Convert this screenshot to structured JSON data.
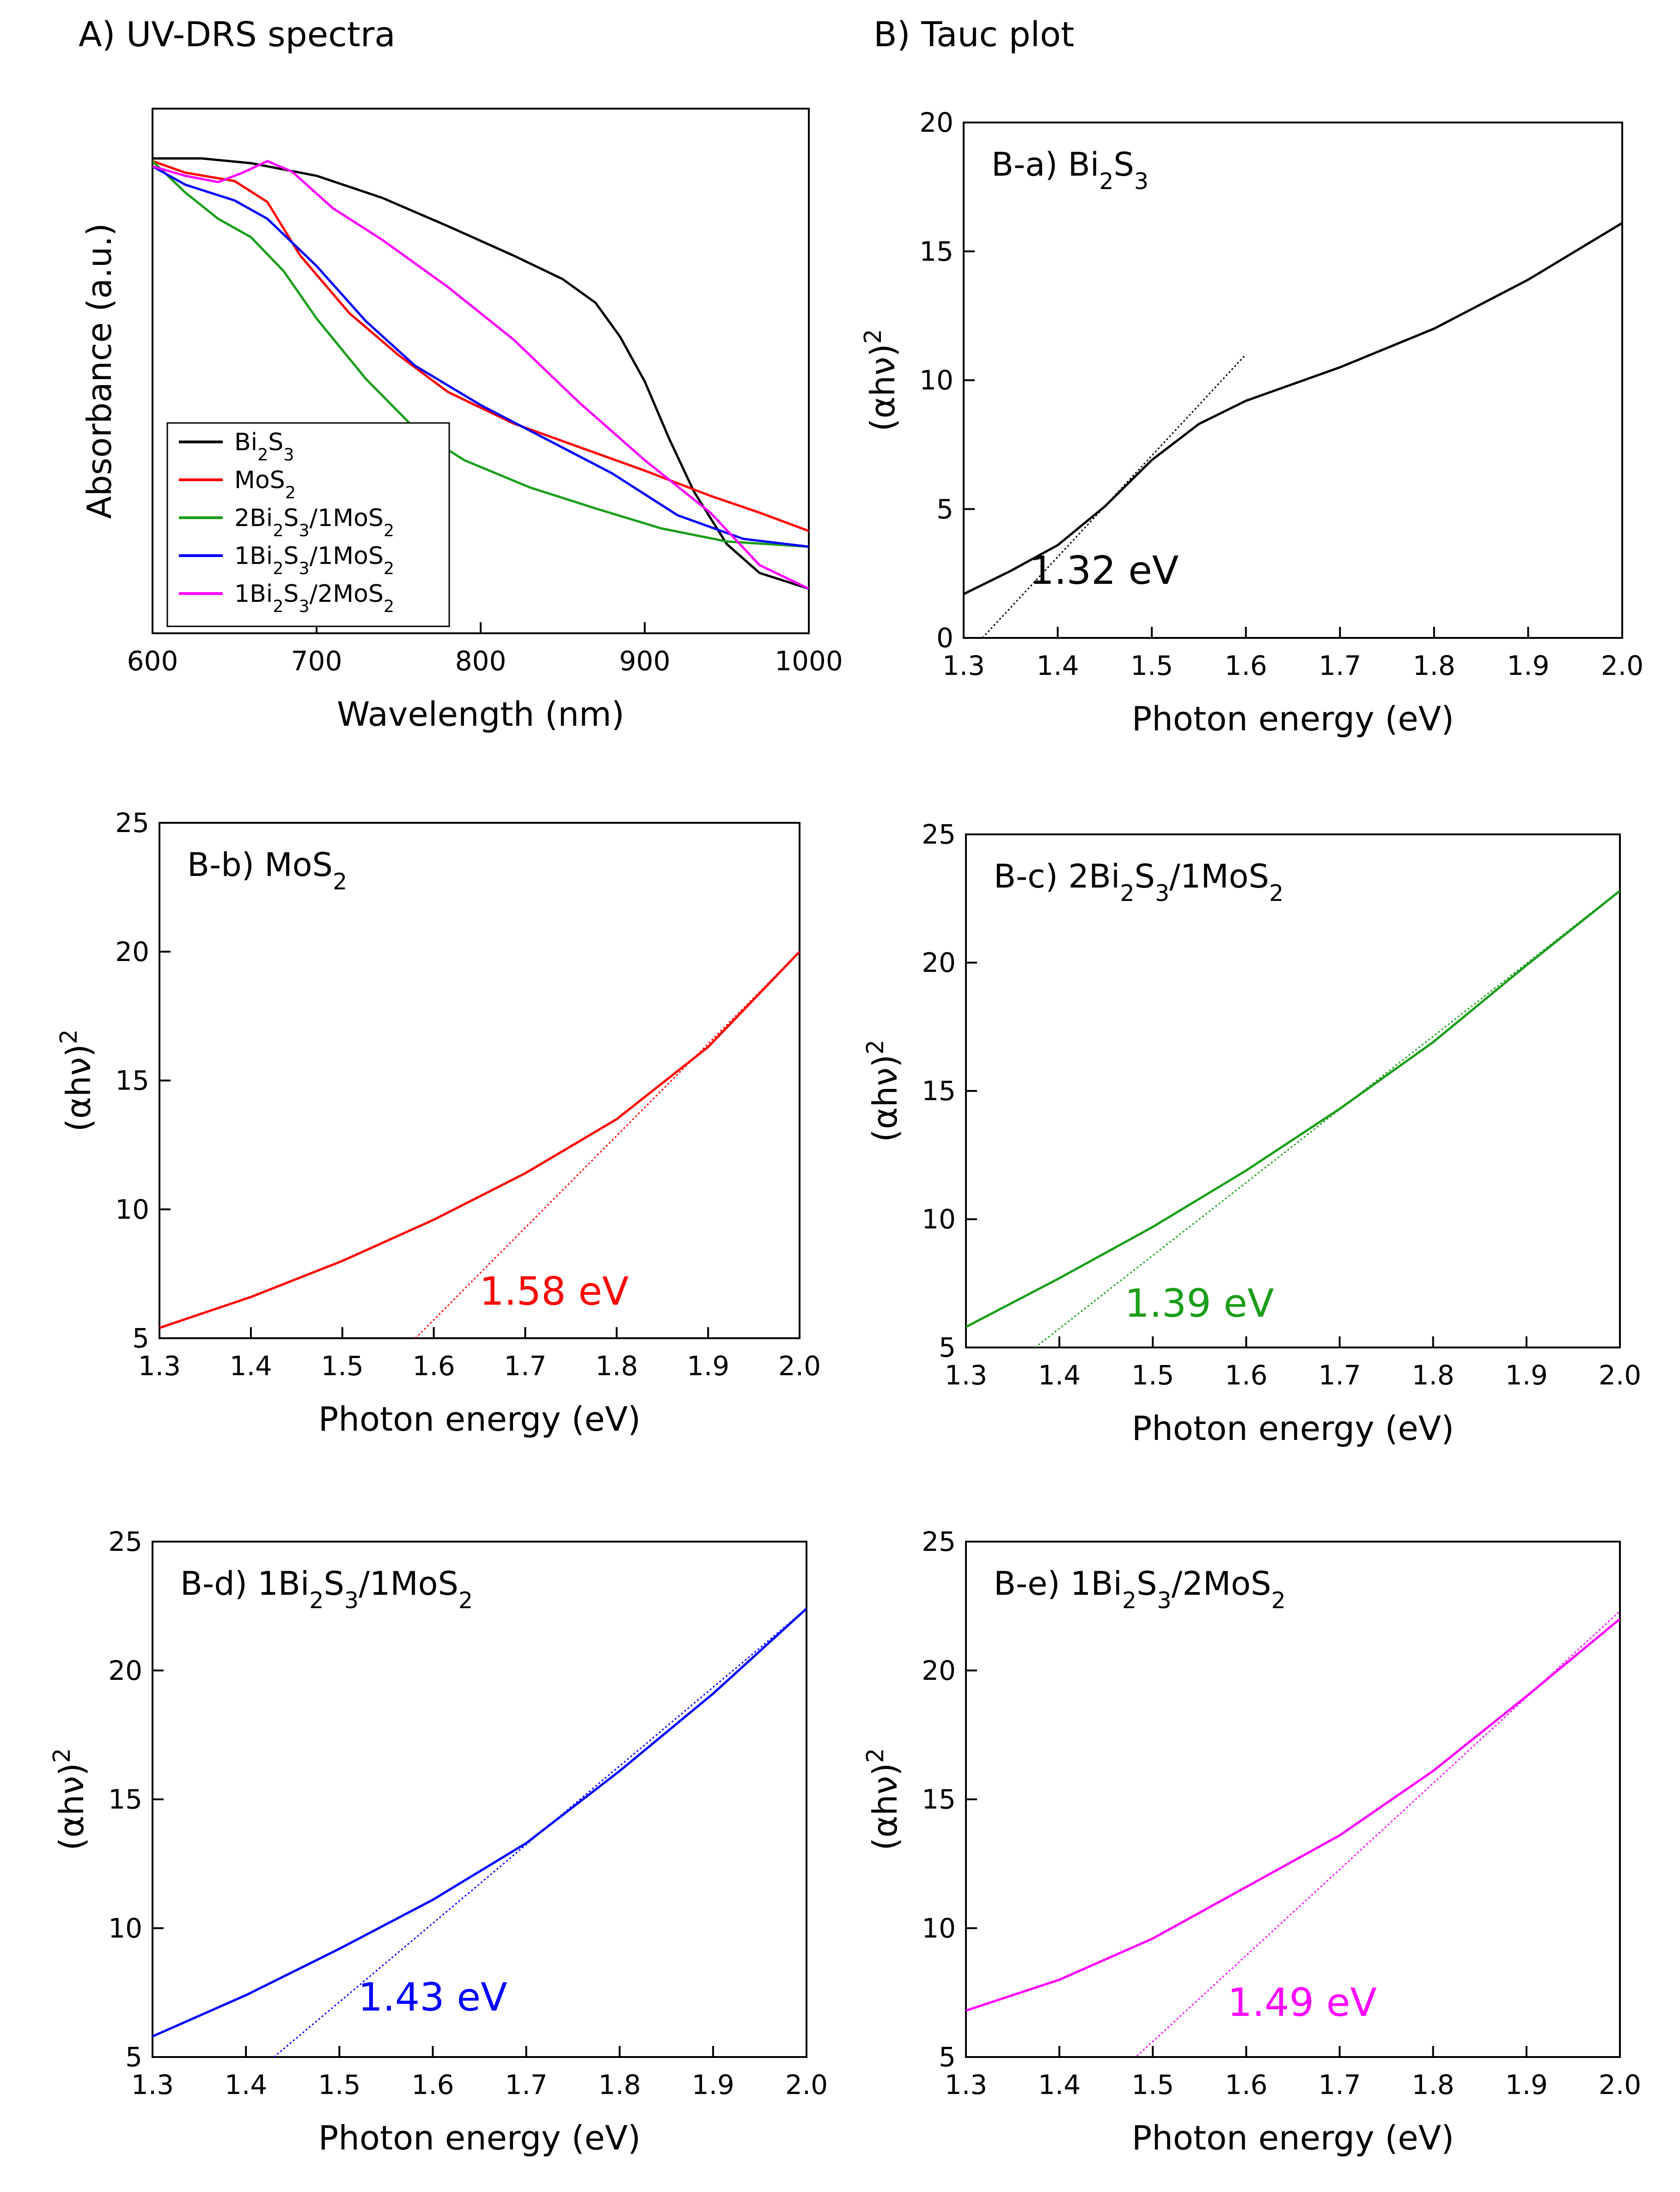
{
  "sections": {
    "a_title": "A) UV-DRS spectra",
    "b_title": "B) Tauc plot"
  },
  "chart_data": [
    {
      "id": "uvdrs",
      "type": "line",
      "title": "",
      "xlabel": "Wavelength (nm)",
      "ylabel": "Absorbance (a.u.)",
      "xlim": [
        600,
        1000
      ],
      "ylim": [
        0,
        1
      ],
      "xticks": [
        600,
        700,
        800,
        900,
        1000
      ],
      "yticks": [],
      "legend_position": "bottom-left",
      "series": [
        {
          "name": "Bi₂S₃",
          "color": "#000000",
          "points": [
            [
              600,
              0.905
            ],
            [
              630,
              0.905
            ],
            [
              660,
              0.896
            ],
            [
              700,
              0.872
            ],
            [
              740,
              0.83
            ],
            [
              780,
              0.776
            ],
            [
              820,
              0.72
            ],
            [
              850,
              0.675
            ],
            [
              870,
              0.63
            ],
            [
              885,
              0.565
            ],
            [
              900,
              0.48
            ],
            [
              915,
              0.37
            ],
            [
              930,
              0.27
            ],
            [
              950,
              0.17
            ],
            [
              970,
              0.115
            ],
            [
              1000,
              0.085
            ]
          ]
        },
        {
          "name": "MoS₂",
          "color": "#ff0000",
          "points": [
            [
              600,
              0.9
            ],
            [
              620,
              0.878
            ],
            [
              650,
              0.862
            ],
            [
              670,
              0.822
            ],
            [
              690,
              0.72
            ],
            [
              720,
              0.61
            ],
            [
              750,
              0.53
            ],
            [
              780,
              0.46
            ],
            [
              820,
              0.4
            ],
            [
              860,
              0.355
            ],
            [
              900,
              0.31
            ],
            [
              940,
              0.262
            ],
            [
              970,
              0.23
            ],
            [
              1000,
              0.195
            ]
          ]
        },
        {
          "name": "2Bi₂S₃/1MoS₂",
          "color": "#1a9e1a",
          "points": [
            [
              600,
              0.9
            ],
            [
              620,
              0.84
            ],
            [
              640,
              0.79
            ],
            [
              660,
              0.755
            ],
            [
              680,
              0.69
            ],
            [
              700,
              0.6
            ],
            [
              730,
              0.485
            ],
            [
              760,
              0.39
            ],
            [
              790,
              0.33
            ],
            [
              830,
              0.278
            ],
            [
              870,
              0.238
            ],
            [
              910,
              0.2
            ],
            [
              950,
              0.175
            ],
            [
              1000,
              0.165
            ]
          ]
        },
        {
          "name": "1Bi₂S₃/1MoS₂",
          "color": "#0000ff",
          "points": [
            [
              600,
              0.89
            ],
            [
              620,
              0.855
            ],
            [
              650,
              0.825
            ],
            [
              670,
              0.79
            ],
            [
              700,
              0.7
            ],
            [
              730,
              0.595
            ],
            [
              760,
              0.51
            ],
            [
              800,
              0.435
            ],
            [
              840,
              0.37
            ],
            [
              880,
              0.305
            ],
            [
              920,
              0.225
            ],
            [
              960,
              0.18
            ],
            [
              1000,
              0.165
            ]
          ]
        },
        {
          "name": "1Bi₂S₃/2MoS₂",
          "color": "#ff00ff",
          "points": [
            [
              600,
              0.89
            ],
            [
              620,
              0.872
            ],
            [
              640,
              0.86
            ],
            [
              655,
              0.878
            ],
            [
              670,
              0.9
            ],
            [
              685,
              0.88
            ],
            [
              710,
              0.81
            ],
            [
              740,
              0.75
            ],
            [
              780,
              0.66
            ],
            [
              820,
              0.56
            ],
            [
              860,
              0.44
            ],
            [
              900,
              0.33
            ],
            [
              940,
              0.23
            ],
            [
              970,
              0.13
            ],
            [
              1000,
              0.085
            ]
          ]
        }
      ]
    },
    {
      "id": "taucA",
      "type": "line",
      "title": "B-a) Bi₂S₃",
      "xlabel": "Photon energy (eV)",
      "ylabel": "(αhν)²",
      "xlim": [
        1.3,
        2.0
      ],
      "ylim": [
        0,
        20
      ],
      "xticks": [
        1.3,
        1.4,
        1.5,
        1.6,
        1.7,
        1.8,
        1.9,
        2.0
      ],
      "yticks": [
        0,
        5,
        10,
        15,
        20
      ],
      "color": "#000000",
      "curve": [
        [
          1.3,
          1.7
        ],
        [
          1.35,
          2.6
        ],
        [
          1.4,
          3.6
        ],
        [
          1.45,
          5.1
        ],
        [
          1.5,
          6.9
        ],
        [
          1.55,
          8.3
        ],
        [
          1.6,
          9.2
        ],
        [
          1.7,
          10.5
        ],
        [
          1.8,
          12
        ],
        [
          1.9,
          13.9
        ],
        [
          2.0,
          16.1
        ]
      ],
      "tangent": [
        [
          1.32,
          0
        ],
        [
          1.6,
          11
        ]
      ],
      "annotation": "1.32 eV",
      "annotation_at": [
        1.37,
        2.1
      ]
    },
    {
      "id": "taucB",
      "type": "line",
      "title": "B-b) MoS₂",
      "xlabel": "Photon energy (eV)",
      "ylabel": "(αhν)²",
      "xlim": [
        1.3,
        2.0
      ],
      "ylim": [
        5,
        25
      ],
      "xticks": [
        1.3,
        1.4,
        1.5,
        1.6,
        1.7,
        1.8,
        1.9,
        2.0
      ],
      "yticks": [
        5,
        10,
        15,
        20,
        25
      ],
      "color": "#ff0000",
      "curve": [
        [
          1.3,
          5.4
        ],
        [
          1.4,
          6.6
        ],
        [
          1.5,
          8
        ],
        [
          1.6,
          9.6
        ],
        [
          1.7,
          11.4
        ],
        [
          1.8,
          13.5
        ],
        [
          1.9,
          16.3
        ],
        [
          2.0,
          20
        ]
      ],
      "tangent": [
        [
          1.58,
          5
        ],
        [
          2.0,
          20
        ]
      ],
      "annotation": "1.58 eV",
      "annotation_at": [
        1.65,
        6.3
      ]
    },
    {
      "id": "taucC",
      "type": "line",
      "title": "B-c) 2Bi₂S₃/1MoS₂",
      "xlabel": "Photon energy (eV)",
      "ylabel": "(αhν)²",
      "xlim": [
        1.3,
        2.0
      ],
      "ylim": [
        5,
        25
      ],
      "xticks": [
        1.3,
        1.4,
        1.5,
        1.6,
        1.7,
        1.8,
        1.9,
        2.0
      ],
      "yticks": [
        5,
        10,
        15,
        20,
        25
      ],
      "color": "#1a9e1a",
      "curve": [
        [
          1.3,
          5.8
        ],
        [
          1.4,
          7.7
        ],
        [
          1.5,
          9.7
        ],
        [
          1.6,
          11.9
        ],
        [
          1.7,
          14.3
        ],
        [
          1.8,
          16.9
        ],
        [
          1.9,
          19.9
        ],
        [
          2.0,
          22.8
        ]
      ],
      "tangent": [
        [
          1.36,
          4.6
        ],
        [
          2.01,
          23.1
        ]
      ],
      "annotation": "1.39 eV",
      "annotation_at": [
        1.47,
        6.2
      ]
    },
    {
      "id": "taucD",
      "type": "line",
      "title": "B-d) 1Bi₂S₃/1MoS₂",
      "xlabel": "Photon energy (eV)",
      "ylabel": "(αhν)²",
      "xlim": [
        1.3,
        2.0
      ],
      "ylim": [
        5,
        25
      ],
      "xticks": [
        1.3,
        1.4,
        1.5,
        1.6,
        1.7,
        1.8,
        1.9,
        2.0
      ],
      "yticks": [
        5,
        10,
        15,
        20,
        25
      ],
      "color": "#0000ff",
      "curve": [
        [
          1.3,
          5.8
        ],
        [
          1.4,
          7.4
        ],
        [
          1.5,
          9.2
        ],
        [
          1.6,
          11.1
        ],
        [
          1.7,
          13.3
        ],
        [
          1.8,
          16.1
        ],
        [
          1.9,
          19.1
        ],
        [
          2.0,
          22.4
        ]
      ],
      "tangent": [
        [
          1.43,
          5
        ],
        [
          2.0,
          22.4
        ]
      ],
      "annotation": "1.43 eV",
      "annotation_at": [
        1.52,
        6.8
      ]
    },
    {
      "id": "taucE",
      "type": "line",
      "title": "B-e) 1Bi₂S₃/2MoS₂",
      "xlabel": "Photon energy (eV)",
      "ylabel": "(αhν)²",
      "xlim": [
        1.3,
        2.0
      ],
      "ylim": [
        5,
        25
      ],
      "xticks": [
        1.3,
        1.4,
        1.5,
        1.6,
        1.7,
        1.8,
        1.9,
        2.0
      ],
      "yticks": [
        5,
        10,
        15,
        20,
        25
      ],
      "color": "#ff00ff",
      "curve": [
        [
          1.3,
          6.8
        ],
        [
          1.4,
          8
        ],
        [
          1.5,
          9.6
        ],
        [
          1.6,
          11.6
        ],
        [
          1.7,
          13.6
        ],
        [
          1.8,
          16.1
        ],
        [
          1.9,
          19
        ],
        [
          2.0,
          22
        ]
      ],
      "tangent": [
        [
          1.47,
          4.6
        ],
        [
          2.0,
          22.3
        ]
      ],
      "annotation": "1.49 eV",
      "annotation_at": [
        1.58,
        6.6
      ]
    }
  ]
}
